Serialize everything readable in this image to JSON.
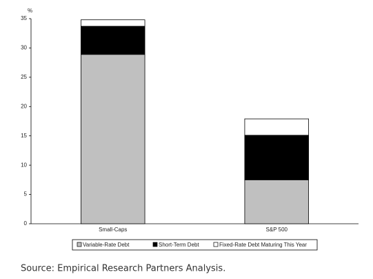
{
  "chart_data": {
    "type": "stacked_bar",
    "y_label": "%",
    "categories": [
      "Small-Caps",
      "S&P 500"
    ],
    "series": [
      {
        "name": "Variable-Rate Debt",
        "color": "#c0c0c0",
        "values": [
          28.9,
          7.5
        ]
      },
      {
        "name": "Short-Term Debt",
        "color": "#000000",
        "values": [
          4.8,
          7.6
        ]
      },
      {
        "name": "Fixed-Rate Debt Maturing This Year",
        "color": "#ffffff",
        "values": [
          1.1,
          2.8
        ]
      }
    ],
    "ylim": [
      0,
      35
    ],
    "yticks": [
      0,
      5,
      10,
      15,
      20,
      25,
      30,
      35
    ],
    "legend": "bottom",
    "source": "Source: Empirical Research Partners Analysis."
  }
}
